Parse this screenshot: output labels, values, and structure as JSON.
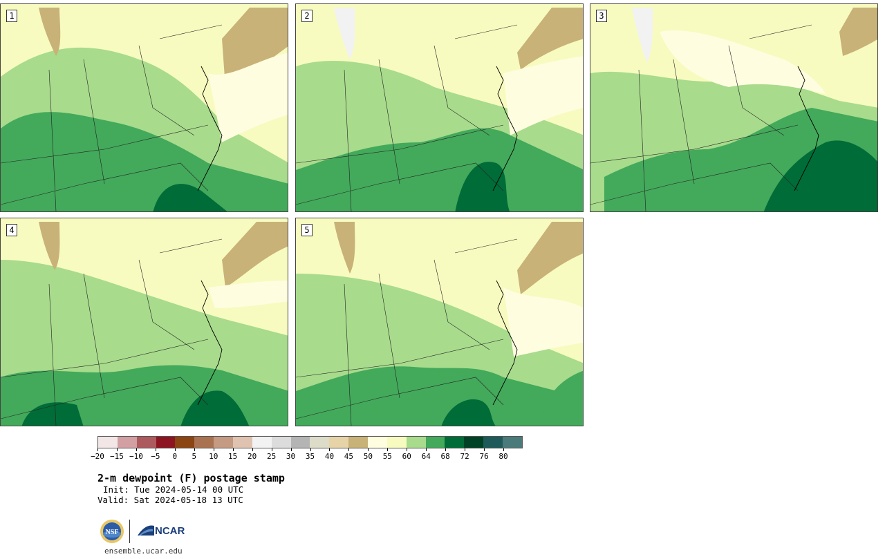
{
  "panels": [
    {
      "label": "1"
    },
    {
      "label": "2"
    },
    {
      "label": "3"
    },
    {
      "label": "4"
    },
    {
      "label": "5"
    }
  ],
  "colorbar": {
    "colors": [
      "#f3e6e6",
      "#d29fa3",
      "#ad5a5f",
      "#8c1521",
      "#8b4513",
      "#a97352",
      "#c49a82",
      "#dfc3b0",
      "#f2f2f2",
      "#dcdcdc",
      "#b4b4b4",
      "#dcdcc8",
      "#e6d3a8",
      "#c8b278",
      "#fefde0",
      "#f7fbbf",
      "#a8db8c",
      "#43a95b",
      "#006c37",
      "#004225",
      "#1e5a5a",
      "#4b7a7a"
    ],
    "tick_labels": [
      "−20",
      "−15",
      "−10",
      "−5",
      "0",
      "5",
      "10",
      "15",
      "20",
      "25",
      "30",
      "35",
      "40",
      "45",
      "50",
      "55",
      "60",
      "64",
      "68",
      "72",
      "76",
      "80"
    ]
  },
  "title": "2-m dewpoint (F) postage stamp",
  "init": "Init: Tue 2024-05-14 00 UTC",
  "valid": "Valid: Sat 2024-05-18 13 UTC",
  "logos": {
    "ncar": "NCAR",
    "nsf": "NSF"
  },
  "url": "ensemble.ucar.edu"
}
